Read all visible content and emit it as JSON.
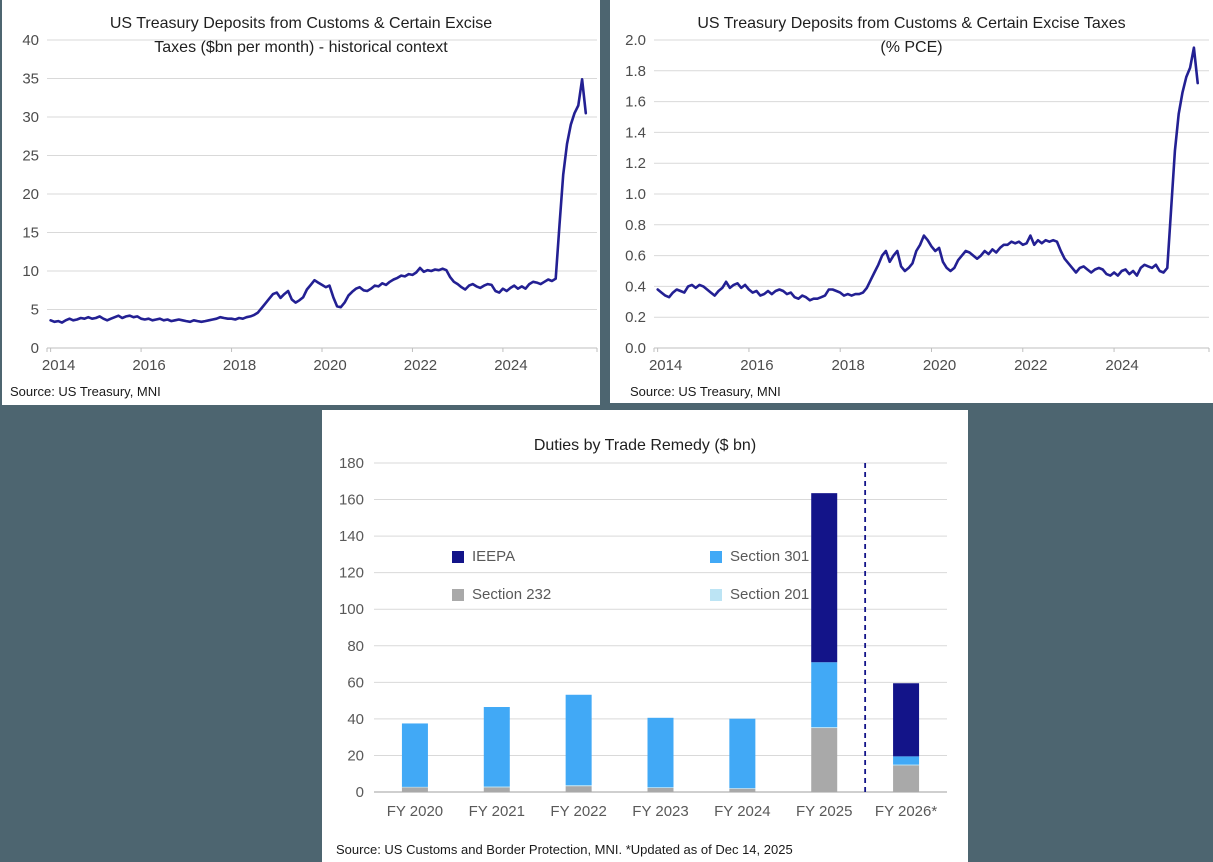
{
  "colors": {
    "background": "#4D6570",
    "panel": "#FFFFFF",
    "line": "#232093",
    "grid": "#D9D9D9",
    "axis_line": "#BFBFBF",
    "tick_text": "#4d4d4d",
    "bar_tick_text": "#595959",
    "title_text": "#1F1F1F",
    "ieepa": "#131489",
    "section301": "#41A9F6",
    "section232": "#A9A9A9",
    "section201": "#BCE4F4"
  },
  "chart_data": [
    {
      "type": "line",
      "title": "US Treasury Deposits from Customs & Certain Excise Taxes ($bn per month) - historical context",
      "title_lines": [
        "US Treasury Deposits from Customs & Certain Excise",
        "Taxes ($bn per month) - historical context"
      ],
      "source": "Source: US Treasury, MNI",
      "x_start_year": 2014,
      "frequency": "monthly",
      "xlim": [
        2013.92,
        2026.08
      ],
      "ylim": [
        0,
        40
      ],
      "yticks": [
        0,
        5,
        10,
        15,
        20,
        25,
        30,
        35,
        40
      ],
      "ytick_labels": [
        "0",
        "5",
        "10",
        "15",
        "20",
        "25",
        "30",
        "35",
        "40"
      ],
      "xticks": [
        2014,
        2016,
        2018,
        2020,
        2022,
        2024
      ],
      "xtick_labels": [
        "2014",
        "2016",
        "2018",
        "2020",
        "2022",
        "2024"
      ],
      "grid": true,
      "values": [
        3.6,
        3.4,
        3.5,
        3.3,
        3.6,
        3.8,
        3.6,
        3.7,
        3.9,
        3.8,
        4.0,
        3.8,
        3.9,
        4.1,
        3.8,
        3.6,
        3.8,
        4.0,
        4.2,
        3.9,
        4.1,
        4.2,
        4.0,
        4.1,
        3.8,
        3.7,
        3.8,
        3.6,
        3.7,
        3.8,
        3.6,
        3.7,
        3.5,
        3.6,
        3.7,
        3.6,
        3.5,
        3.4,
        3.6,
        3.5,
        3.4,
        3.5,
        3.6,
        3.7,
        3.8,
        4.0,
        3.9,
        3.8,
        3.8,
        3.7,
        3.9,
        3.8,
        4.0,
        4.1,
        4.3,
        4.6,
        5.2,
        5.8,
        6.4,
        7.0,
        7.2,
        6.5,
        7.0,
        7.4,
        6.3,
        5.9,
        6.2,
        6.6,
        7.6,
        8.2,
        8.8,
        8.5,
        8.2,
        7.9,
        8.1,
        6.6,
        5.4,
        5.3,
        5.9,
        6.8,
        7.3,
        7.7,
        7.9,
        7.5,
        7.4,
        7.7,
        8.1,
        8.0,
        8.4,
        8.2,
        8.6,
        8.9,
        9.1,
        9.4,
        9.3,
        9.6,
        9.5,
        9.8,
        10.4,
        9.9,
        10.1,
        10.0,
        10.2,
        10.1,
        10.3,
        10.1,
        9.2,
        8.6,
        8.3,
        7.9,
        7.6,
        8.1,
        8.3,
        8.0,
        7.8,
        8.1,
        8.3,
        8.2,
        7.4,
        7.2,
        7.7,
        7.4,
        7.8,
        8.1,
        7.7,
        8.0,
        7.7,
        8.3,
        8.6,
        8.5,
        8.3,
        8.6,
        8.9,
        8.7,
        9.0,
        16.0,
        22.5,
        26.5,
        29.0,
        30.5,
        31.5,
        34.9,
        30.5
      ]
    },
    {
      "type": "line",
      "title": "US Treasury Deposits from Customs & Certain Excise Taxes (% PCE)",
      "title_lines": [
        "US Treasury Deposits from Customs & Certain Excise Taxes",
        "(% PCE)"
      ],
      "source": "Source: US Treasury, MNI",
      "x_start_year": 2014,
      "frequency": "monthly",
      "xlim": [
        2013.92,
        2026.08
      ],
      "ylim": [
        0,
        2.0
      ],
      "yticks": [
        0,
        0.2,
        0.4,
        0.6,
        0.8,
        1.0,
        1.2,
        1.4,
        1.6,
        1.8,
        2.0
      ],
      "ytick_labels": [
        "0.0",
        "0.2",
        "0.4",
        "0.6",
        "0.8",
        "1.0",
        "1.2",
        "1.4",
        "1.6",
        "1.8",
        "2.0"
      ],
      "xticks": [
        2014,
        2016,
        2018,
        2020,
        2022,
        2024
      ],
      "xtick_labels": [
        "2014",
        "2016",
        "2018",
        "2020",
        "2022",
        "2024"
      ],
      "grid": true,
      "values": [
        0.38,
        0.36,
        0.34,
        0.33,
        0.36,
        0.38,
        0.37,
        0.36,
        0.4,
        0.41,
        0.39,
        0.41,
        0.4,
        0.38,
        0.36,
        0.34,
        0.37,
        0.39,
        0.43,
        0.39,
        0.41,
        0.42,
        0.39,
        0.41,
        0.38,
        0.36,
        0.37,
        0.34,
        0.35,
        0.37,
        0.35,
        0.37,
        0.38,
        0.37,
        0.35,
        0.36,
        0.33,
        0.32,
        0.34,
        0.33,
        0.31,
        0.32,
        0.32,
        0.33,
        0.34,
        0.38,
        0.38,
        0.37,
        0.36,
        0.34,
        0.35,
        0.34,
        0.35,
        0.35,
        0.36,
        0.39,
        0.44,
        0.49,
        0.54,
        0.6,
        0.63,
        0.56,
        0.6,
        0.63,
        0.53,
        0.5,
        0.52,
        0.55,
        0.63,
        0.67,
        0.73,
        0.7,
        0.66,
        0.63,
        0.65,
        0.56,
        0.52,
        0.5,
        0.52,
        0.57,
        0.6,
        0.63,
        0.62,
        0.6,
        0.58,
        0.6,
        0.63,
        0.61,
        0.64,
        0.62,
        0.65,
        0.67,
        0.67,
        0.69,
        0.68,
        0.69,
        0.67,
        0.68,
        0.73,
        0.67,
        0.7,
        0.68,
        0.7,
        0.69,
        0.7,
        0.69,
        0.63,
        0.58,
        0.55,
        0.52,
        0.49,
        0.52,
        0.53,
        0.51,
        0.49,
        0.51,
        0.52,
        0.51,
        0.48,
        0.47,
        0.49,
        0.47,
        0.5,
        0.51,
        0.48,
        0.5,
        0.47,
        0.52,
        0.54,
        0.53,
        0.52,
        0.54,
        0.5,
        0.49,
        0.52,
        0.9,
        1.28,
        1.52,
        1.66,
        1.76,
        1.82,
        1.95,
        1.72
      ]
    },
    {
      "type": "stacked-bar",
      "title": "Duties by Trade Remedy ($ bn)",
      "source": "Source: US Customs and Border Protection, MNI. *Updated as of Dec 14, 2025",
      "categories": [
        "FY 2020",
        "FY 2021",
        "FY 2022",
        "FY 2023",
        "FY 2024",
        "FY 2025",
        "FY 2026*"
      ],
      "series": [
        {
          "name": "Section 232",
          "color_key": "section232",
          "values": [
            2.5,
            2.5,
            3.2,
            2.2,
            1.8,
            35.0,
            14.5
          ]
        },
        {
          "name": "Section 201",
          "color_key": "section201",
          "values": [
            0.3,
            0.5,
            0.5,
            0.4,
            0.3,
            0.5,
            0.5
          ]
        },
        {
          "name": "Section 301",
          "color_key": "section301",
          "values": [
            34.7,
            43.5,
            49.5,
            38.0,
            38.0,
            35.5,
            4.5
          ]
        },
        {
          "name": "IEEPA",
          "color_key": "ieepa",
          "values": [
            0,
            0,
            0,
            0,
            0,
            92.5,
            40.0
          ]
        }
      ],
      "ylim": [
        0,
        180
      ],
      "yticks": [
        0,
        20,
        40,
        60,
        80,
        100,
        120,
        140,
        160,
        180
      ],
      "ytick_labels": [
        "0",
        "20",
        "40",
        "60",
        "80",
        "100",
        "120",
        "140",
        "160",
        "180"
      ],
      "grid": true,
      "forecast_divider_after": "FY 2025",
      "legend": [
        {
          "label": "IEEPA",
          "color_key": "ieepa"
        },
        {
          "label": "Section 301",
          "color_key": "section301"
        },
        {
          "label": "Section 232",
          "color_key": "section232"
        },
        {
          "label": "Section 201",
          "color_key": "section201"
        }
      ]
    }
  ]
}
